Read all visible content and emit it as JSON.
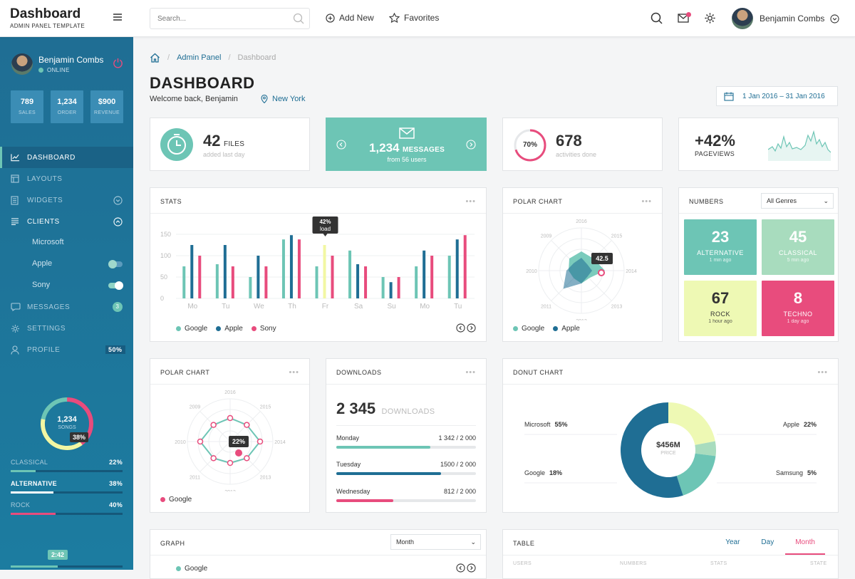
{
  "brand": {
    "title": "Dashboard",
    "subtitle": "ADMIN PANEL TEMPLATE"
  },
  "topbar": {
    "search_placeholder": "Search...",
    "add_new": "Add New",
    "favorites": "Favorites",
    "user_name": "Benjamin Combs"
  },
  "sidebar": {
    "user": {
      "name": "Benjamin Combs",
      "status": "ONLINE"
    },
    "stats": [
      {
        "value": "789",
        "label": "SALES"
      },
      {
        "value": "1,234",
        "label": "ORDER"
      },
      {
        "value": "$900",
        "label": "REVENUE"
      }
    ],
    "nav": [
      {
        "label": "DASHBOARD",
        "icon": "chart-line-icon"
      },
      {
        "label": "LAYOUTS",
        "icon": "layout-icon"
      },
      {
        "label": "WIDGETS",
        "icon": "widgets-icon"
      },
      {
        "label": "CLIENTS",
        "icon": "list-icon"
      },
      {
        "label": "MESSAGES",
        "icon": "chat-icon",
        "badge": "3"
      },
      {
        "label": "SETTINGS",
        "icon": "gear-icon"
      },
      {
        "label": "PROFILE",
        "icon": "user-icon",
        "badge": "50%"
      }
    ],
    "clients": [
      {
        "label": "Microsoft"
      },
      {
        "label": "Apple",
        "on": false
      },
      {
        "label": "Sony",
        "on": true
      }
    ],
    "songs": {
      "value": "1,234",
      "label": "SONGS",
      "pct": "38%"
    },
    "genres": [
      {
        "label": "CLASSICAL",
        "pct": "22%",
        "value": 0.22,
        "color": "#6dc5b5"
      },
      {
        "label": "ALTERNATIVE",
        "pct": "38%",
        "value": 0.38,
        "color": "#ffffff"
      },
      {
        "label": "ROCK",
        "pct": "40%",
        "value": 0.4,
        "color": "#e84c7d"
      }
    ],
    "player": {
      "time": "2:42",
      "progress": 0.42
    }
  },
  "breadcrumb": {
    "home_icon": "home-icon",
    "level1": "Admin Panel",
    "level2": "Dashboard"
  },
  "page": {
    "title": "DASHBOARD",
    "welcome": "Welcome back, Benjamin",
    "location": "New York",
    "date_range": "1 Jan 2016  –  31 Jan 2016"
  },
  "cards": {
    "files": {
      "value": "42",
      "unit": "FILES",
      "sub": "added last day"
    },
    "messages": {
      "value": "1,234",
      "unit": "MESSAGES",
      "sub": "from 56 users"
    },
    "activities": {
      "pct": "70%",
      "value": "678",
      "sub": "activities done",
      "progress": 0.7
    },
    "pageviews": {
      "value": "+42%",
      "unit": "PAGEVIEWS"
    }
  },
  "stats_chart": {
    "title": "STATS",
    "chart_data": {
      "type": "bar",
      "categories": [
        "Mo",
        "Tu",
        "We",
        "Th",
        "Fr",
        "Sa",
        "Su",
        "Mo",
        "Tu"
      ],
      "yticks": [
        0,
        50,
        100,
        150
      ],
      "ylim": [
        0,
        150
      ],
      "series": [
        {
          "name": "Google",
          "color": "#6dc5b5",
          "values": [
            75,
            80,
            50,
            138,
            75,
            112,
            50,
            75,
            100
          ]
        },
        {
          "name": "Apple",
          "color": "#1f6e94",
          "values": [
            125,
            125,
            100,
            148,
            125,
            80,
            38,
            112,
            138
          ]
        },
        {
          "name": "Sony",
          "color": "#e84c7d",
          "values": [
            100,
            75,
            75,
            138,
            100,
            75,
            50,
            100,
            148
          ]
        }
      ],
      "highlight": {
        "index": 4,
        "value": "42%",
        "label": "load",
        "color": "#f2f7a3"
      }
    }
  },
  "polar1": {
    "title": "POLAR CHART",
    "chart_data": {
      "type": "radar",
      "labels": [
        "2016",
        "2015",
        "2014",
        "2013",
        "2012",
        "2011",
        "2010",
        "2009"
      ],
      "series": [
        {
          "name": "Google",
          "color": "#6dc5b5",
          "values": [
            0.45,
            0.4,
            0.55,
            0.25,
            0.3,
            0.25,
            0.3,
            0.4
          ]
        },
        {
          "name": "Apple",
          "color": "#1f6e94",
          "values": [
            0.3,
            0.2,
            0.25,
            0.2,
            0.3,
            0.6,
            0.35,
            0.25
          ]
        }
      ],
      "tooltip": "42.5"
    }
  },
  "numbers": {
    "title": "NUMBERS",
    "select": "All Genres",
    "tiles": [
      {
        "value": "23",
        "label": "ALTERNATIVE",
        "sub": "1 min ago",
        "bg": "#6dc5b5",
        "fg": "#ffffff"
      },
      {
        "value": "45",
        "label": "CLASSICAL",
        "sub": "5 min ago",
        "bg": "#a8dcbe",
        "fg": "#ffffff"
      },
      {
        "value": "67",
        "label": "ROCK",
        "sub": "1 hour ago",
        "bg": "#eef9b4",
        "fg": "#333333"
      },
      {
        "value": "8",
        "label": "TECHNO",
        "sub": "1 day ago",
        "bg": "#e84c7d",
        "fg": "#ffffff"
      }
    ]
  },
  "polar2": {
    "title": "POLAR CHART",
    "chart_data": {
      "type": "radar",
      "labels": [
        "2016",
        "2015",
        "2014",
        "2013",
        "2012",
        "2011",
        "2010",
        "2009"
      ],
      "series": [
        {
          "name": "Google",
          "color": "#e84c7d",
          "values": [
            0.55,
            0.55,
            0.7,
            0.55,
            0.5,
            0.55,
            0.7,
            0.55
          ]
        }
      ],
      "tooltip": "22%"
    }
  },
  "downloads": {
    "title": "DOWNLOADS",
    "total": "2 345",
    "unit": "DOWNLOADS",
    "rows": [
      {
        "day": "Monday",
        "value": "1 342 / 2 000",
        "fill": 0.671,
        "color": "#6dc5b5"
      },
      {
        "day": "Tuesday",
        "value": "1500 / 2 000",
        "fill": 0.75,
        "color": "#1f6e94"
      },
      {
        "day": "Wednesday",
        "value": "812 / 2 000",
        "fill": 0.406,
        "color": "#e84c7d"
      }
    ]
  },
  "donut": {
    "title": "DONUT CHART",
    "center_value": "$456M",
    "center_label": "PRICE",
    "chart_data": {
      "type": "pie",
      "slices": [
        {
          "name": "Apple",
          "value": 22,
          "label": "22%",
          "color": "#eef9b4"
        },
        {
          "name": "Samsung",
          "value": 5,
          "label": "5%",
          "color": "#a8dcbe"
        },
        {
          "name": "Google",
          "value": 18,
          "label": "18%",
          "color": "#6dc5b5"
        },
        {
          "name": "Microsoft",
          "value": 55,
          "label": "55%",
          "color": "#1f6e94"
        }
      ]
    }
  },
  "graph": {
    "title": "GRAPH",
    "select": "Month",
    "legend": "Google"
  },
  "table": {
    "title": "TABLE",
    "tabs": [
      "Year",
      "Day",
      "Month"
    ],
    "columns": [
      "USERS",
      "NUMBERS",
      "STATS",
      "STATE"
    ]
  }
}
